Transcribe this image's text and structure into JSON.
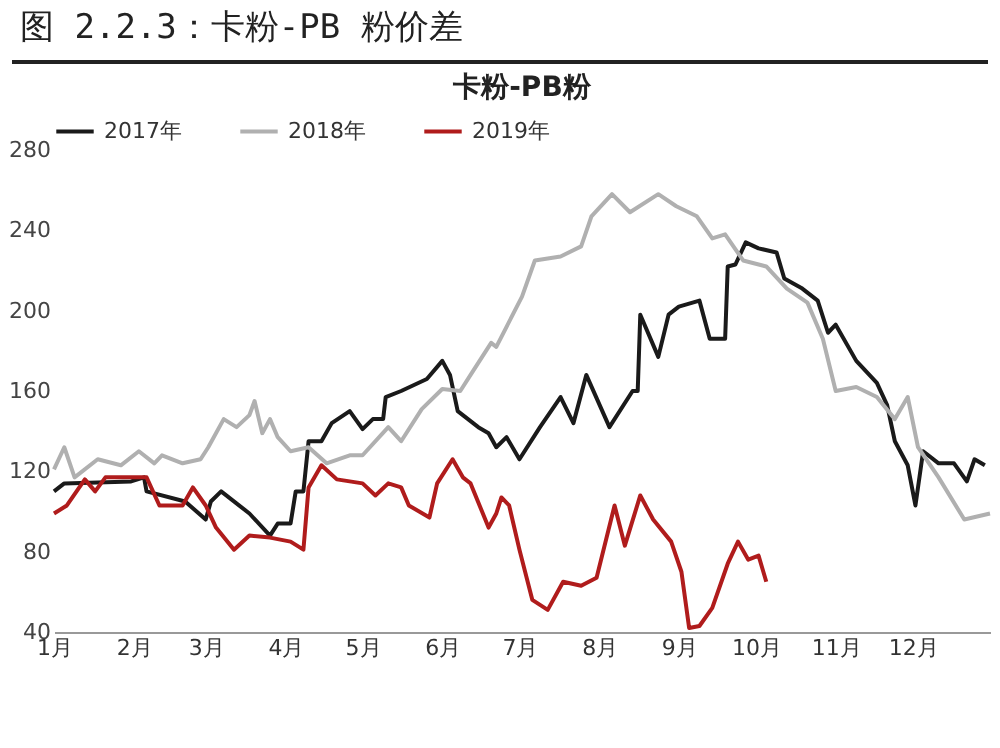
{
  "chart_data": {
    "type": "line",
    "title": "图 2.2.3：卡粉-PB 粉价差",
    "subtitle": "卡粉-PB粉",
    "x": [
      "--01-01",
      "--01-05",
      "--01-31",
      "--02-05",
      "--02-06",
      "--02-21",
      "--03-01",
      "--03-03",
      "--03-07",
      "--03-18",
      "--03-26",
      "--03-29",
      "--04-03",
      "--04-05",
      "--04-08",
      "--04-10",
      "--04-15",
      "--04-19",
      "--04-26",
      "--05-01",
      "--05-05",
      "--05-09",
      "--05-10",
      "--05-16",
      "--05-26",
      "--06-01",
      "--06-04",
      "--06-07",
      "--06-15",
      "--06-19",
      "--06-22",
      "--06-26",
      "--07-01",
      "--07-09",
      "--07-17",
      "--07-22",
      "--07-27",
      "--08-05",
      "--08-14",
      "--08-16",
      "--08-17",
      "--08-24",
      "--08-28",
      "--09-01",
      "--09-09",
      "--09-13",
      "--09-19",
      "--09-20",
      "--09-23",
      "--09-27",
      "--10-02",
      "--10-09",
      "--10-12",
      "--10-19",
      "--10-25",
      "--10-29",
      "--11-01",
      "--11-09",
      "--11-17",
      "--11-21",
      "--11-24",
      "--11-29",
      "--12-02",
      "--12-05",
      "--12-11",
      "--12-17",
      "--12-22",
      "--12-25",
      "--12-29"
    ],
    "series": [
      {
        "name": "2017年",
        "color": "#1a1a1a",
        "values": [
          110,
          114,
          115,
          117,
          110,
          105,
          96,
          105,
          110,
          99,
          88,
          94,
          94,
          110,
          110,
          135,
          135,
          144,
          150,
          141,
          146,
          146,
          157,
          160,
          166,
          175,
          168,
          150,
          142,
          139,
          132,
          137,
          126,
          142,
          157,
          144,
          168,
          142,
          160,
          160,
          198,
          177,
          198,
          202,
          205,
          186,
          186,
          222,
          223,
          234,
          231,
          229,
          216,
          211,
          205,
          189,
          193,
          175,
          164,
          153,
          135,
          123,
          103,
          130,
          124,
          124,
          115,
          126,
          123
        ]
      },
      {
        "name": "2018年",
        "color": "#b0b0b0",
        "x": [
          "--01-01",
          "--01-05",
          "--01-09",
          "--01-18",
          "--01-27",
          "--02-03",
          "--02-09",
          "--02-12",
          "--02-20",
          "--02-27",
          "--03-02",
          "--03-08",
          "--03-13",
          "--03-18",
          "--03-20",
          "--03-23",
          "--03-26",
          "--03-29",
          "--04-03",
          "--04-10",
          "--04-17",
          "--04-26",
          "--05-01",
          "--05-11",
          "--05-16",
          "--05-24",
          "--06-01",
          "--06-08",
          "--06-12",
          "--06-17",
          "--06-20",
          "--06-22",
          "--07-02",
          "--07-07",
          "--07-17",
          "--07-25",
          "--07-29",
          "--08-06",
          "--08-13",
          "--08-24",
          "--08-31",
          "--09-08",
          "--09-14",
          "--09-19",
          "--09-26",
          "--10-05",
          "--10-13",
          "--10-21",
          "--10-27",
          "--11-01",
          "--11-09",
          "--11-17",
          "--11-24",
          "--11-29",
          "--12-03",
          "--12-11",
          "--12-21",
          "--12-31"
        ],
        "values": [
          121,
          132,
          117,
          126,
          123,
          130,
          124,
          128,
          124,
          126,
          132,
          146,
          142,
          148,
          155,
          139,
          146,
          137,
          130,
          132,
          124,
          128,
          128,
          142,
          135,
          151,
          161,
          160,
          168,
          178,
          184,
          182,
          207,
          225,
          227,
          232,
          247,
          258,
          249,
          258,
          252,
          247,
          236,
          238,
          225,
          222,
          211,
          204,
          186,
          160,
          162,
          157,
          146,
          157,
          132,
          117,
          96,
          99
        ]
      },
      {
        "name": "2019年",
        "color": "#b01c1c",
        "x": [
          "--01-01",
          "--01-06",
          "--01-13",
          "--01-17",
          "--01-21",
          "--02-01",
          "--02-06",
          "--02-11",
          "--02-20",
          "--02-24",
          "--03-01",
          "--03-05",
          "--03-12",
          "--03-18",
          "--03-26",
          "--04-03",
          "--04-08",
          "--04-10",
          "--04-15",
          "--04-21",
          "--05-01",
          "--05-06",
          "--05-11",
          "--05-16",
          "--05-19",
          "--05-27",
          "--05-30",
          "--06-05",
          "--06-09",
          "--06-12",
          "--06-19",
          "--06-22",
          "--06-24",
          "--06-27",
          "--07-01",
          "--07-06",
          "--07-12",
          "--07-18",
          "--07-25",
          "--07-31",
          "--08-07",
          "--08-11",
          "--08-17",
          "--08-22",
          "--08-29",
          "--09-02",
          "--09-05",
          "--09-09",
          "--09-14",
          "--09-20",
          "--09-24",
          "--09-28",
          "--10-02",
          "--10-05"
        ],
        "values": [
          99,
          103,
          116,
          110,
          117,
          117,
          117,
          103,
          103,
          112,
          103,
          92,
          81,
          88,
          87,
          85,
          81,
          112,
          123,
          116,
          114,
          108,
          114,
          112,
          103,
          97,
          114,
          126,
          117,
          114,
          92,
          99,
          107,
          103,
          81,
          56,
          51,
          65,
          63,
          67,
          103,
          83,
          108,
          96,
          85,
          70,
          42,
          43,
          52,
          74,
          85,
          76,
          78,
          65
        ]
      }
    ],
    "xlim": [
      "--01-01",
      "--12-31"
    ],
    "xticks": [
      {
        "value": "--01-01",
        "label": "1月"
      },
      {
        "value": "--02-01",
        "label": "2月"
      },
      {
        "value": "--03-01",
        "label": "3月"
      },
      {
        "value": "--04-01",
        "label": "4月"
      },
      {
        "value": "--05-01",
        "label": "5月"
      },
      {
        "value": "--06-01",
        "label": "6月"
      },
      {
        "value": "--07-01",
        "label": "7月"
      },
      {
        "value": "--08-01",
        "label": "8月"
      },
      {
        "value": "--09-01",
        "label": "9月"
      },
      {
        "value": "--10-01",
        "label": "10月"
      },
      {
        "value": "--11-01",
        "label": "11月"
      },
      {
        "value": "--12-01",
        "label": "12月"
      }
    ],
    "ylim": [
      40,
      280
    ],
    "yticks": [
      40,
      80,
      120,
      160,
      200,
      240,
      280
    ],
    "grid": false,
    "legend": "top",
    "marker": "none",
    "line_style": "solid"
  }
}
